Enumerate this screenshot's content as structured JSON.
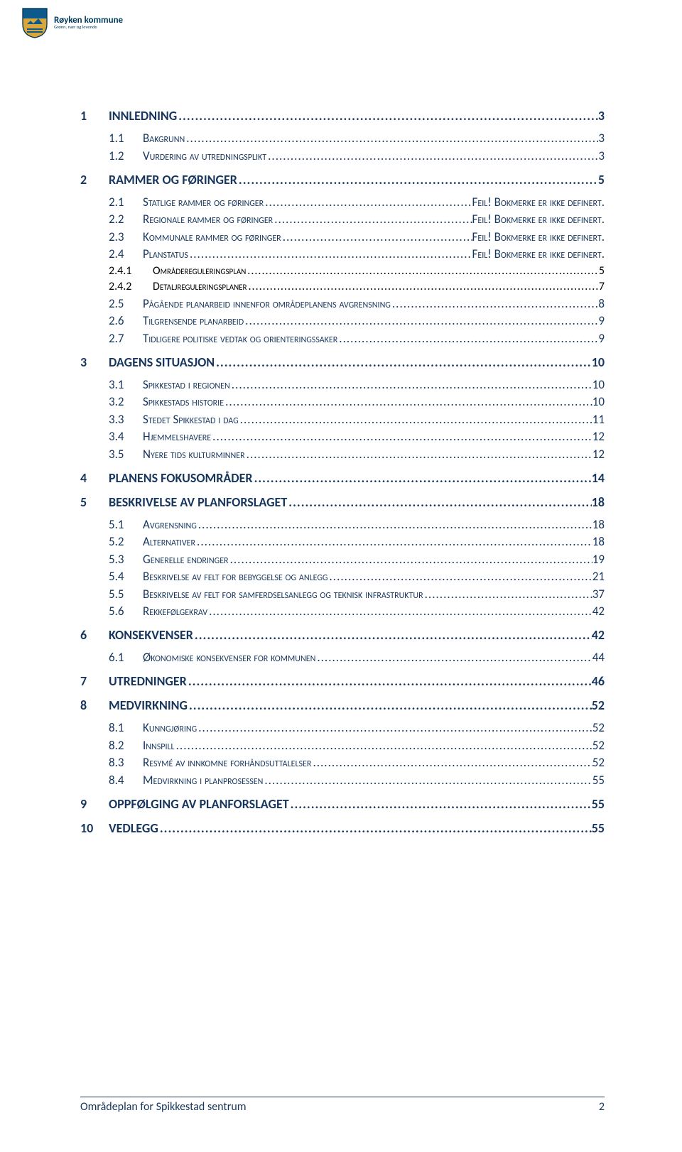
{
  "colors": {
    "heading": "#17365D",
    "body": "#000000",
    "background": "#ffffff",
    "footer_rule": "#17365D",
    "shield_blue": "#0b5a8b",
    "shield_gold": "#d9a63c",
    "shield_border": "#003a5a"
  },
  "org": {
    "name": "Røyken kommune",
    "tagline": "Grønn, nær og levende"
  },
  "footer": {
    "title": "Områdeplan for Spikkestad sentrum",
    "page": "2"
  },
  "fonts": {
    "family": "Calibri",
    "lvl1_size_pt": 14,
    "lvl2_size_pt": 13,
    "lvl3_size_pt": 12
  },
  "toc": [
    {
      "level": 1,
      "num": "1",
      "title": "INNLEDNING",
      "page": "3"
    },
    {
      "level": 2,
      "num": "1.1",
      "title": "Bakgrunn",
      "page": "3"
    },
    {
      "level": 2,
      "num": "1.2",
      "title": "Vurdering av utredningsplikt",
      "page": "3"
    },
    {
      "level": 1,
      "num": "2",
      "title": "RAMMER OG FØRINGER",
      "page": "5",
      "gap_before": true
    },
    {
      "level": 2,
      "num": "2.1",
      "title": "Statlige rammer og føringer",
      "page": "Feil! Bokmerke er ikke definert."
    },
    {
      "level": 2,
      "num": "2.2",
      "title": "Regionale rammer og føringer",
      "page": "Feil! Bokmerke er ikke definert."
    },
    {
      "level": 2,
      "num": "2.3",
      "title": "Kommunale rammer og føringer",
      "page": "Feil! Bokmerke er ikke definert."
    },
    {
      "level": 2,
      "num": "2.4",
      "title": "Planstatus",
      "page": "Feil! Bokmerke er ikke definert."
    },
    {
      "level": 3,
      "num": "2.4.1",
      "title": "Områdereguleringsplan",
      "page": "5"
    },
    {
      "level": 3,
      "num": "2.4.2",
      "title": "Detaljreguleringsplaner",
      "page": "7"
    },
    {
      "level": 2,
      "num": "2.5",
      "title": "Pågående planarbeid innenfor områdeplanens avgrensning",
      "page": "8"
    },
    {
      "level": 2,
      "num": "2.6",
      "title": "Tilgrensende planarbeid",
      "page": "9"
    },
    {
      "level": 2,
      "num": "2.7",
      "title": "Tidligere politiske vedtak og orienteringssaker",
      "page": "9"
    },
    {
      "level": 1,
      "num": "3",
      "title": "DAGENS SITUASJON",
      "page": "10",
      "gap_before": true
    },
    {
      "level": 2,
      "num": "3.1",
      "title": "Spikkestad i regionen",
      "page": "10"
    },
    {
      "level": 2,
      "num": "3.2",
      "title": "Spikkestads historie",
      "page": "10"
    },
    {
      "level": 2,
      "num": "3.3",
      "title": "Stedet Spikkestad i dag",
      "page": "11"
    },
    {
      "level": 2,
      "num": "3.4",
      "title": "Hjemmelshavere",
      "page": "12"
    },
    {
      "level": 2,
      "num": "3.5",
      "title": "Nyere tids kulturminner",
      "page": "12"
    },
    {
      "level": 1,
      "num": "4",
      "title": "PLANENS FOKUSOMRÅDER",
      "page": "14",
      "gap_before": true
    },
    {
      "level": 1,
      "num": "5",
      "title": "BESKRIVELSE AV PLANFORSLAGET",
      "page": "18",
      "gap_before": true
    },
    {
      "level": 2,
      "num": "5.1",
      "title": "Avgrensning",
      "page": "18"
    },
    {
      "level": 2,
      "num": "5.2",
      "title": "Alternativer",
      "page": "18"
    },
    {
      "level": 2,
      "num": "5.3",
      "title": "Generelle endringer",
      "page": "19"
    },
    {
      "level": 2,
      "num": "5.4",
      "title": "Beskrivelse av felt for bebyggelse og anlegg",
      "page": "21"
    },
    {
      "level": 2,
      "num": "5.5",
      "title": "Beskrivelse av felt for samferdselsanlegg og teknisk infrastruktur",
      "page": "37"
    },
    {
      "level": 2,
      "num": "5.6",
      "title": "Rekkefølgekrav",
      "page": "42"
    },
    {
      "level": 1,
      "num": "6",
      "title": "KONSEKVENSER",
      "page": "42",
      "gap_before": true
    },
    {
      "level": 2,
      "num": "6.1",
      "title": "Økonomiske konsekvenser for kommunen",
      "page": "44"
    },
    {
      "level": 1,
      "num": "7",
      "title": "UTREDNINGER",
      "page": "46",
      "gap_before": true
    },
    {
      "level": 1,
      "num": "8",
      "title": "MEDVIRKNING",
      "page": "52",
      "gap_before": true
    },
    {
      "level": 2,
      "num": "8.1",
      "title": "Kunngjøring",
      "page": "52"
    },
    {
      "level": 2,
      "num": "8.2",
      "title": "Innspill",
      "page": "52"
    },
    {
      "level": 2,
      "num": "8.3",
      "title": "Resymé av innkomne forhåndsuttalelser",
      "page": "52"
    },
    {
      "level": 2,
      "num": "8.4",
      "title": "Medvirkning i planprosessen",
      "page": "55"
    },
    {
      "level": 1,
      "num": "9",
      "title": "OPPFØLGING AV PLANFORSLAGET",
      "page": "55",
      "gap_before": true
    },
    {
      "level": 1,
      "num": "10",
      "title": "VEDLEGG",
      "page": "55",
      "gap_before": true
    }
  ]
}
